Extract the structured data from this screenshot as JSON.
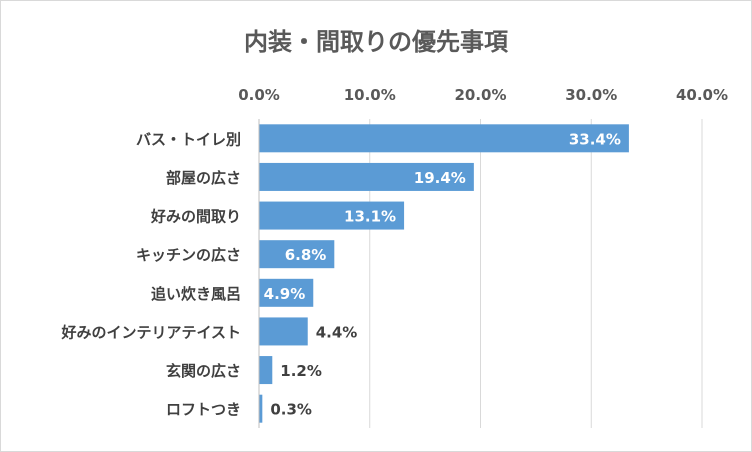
{
  "chart_data": {
    "type": "bar",
    "orientation": "horizontal",
    "title": "内装・間取りの優先事項",
    "xlabel": "",
    "ylabel": "",
    "xlim": [
      0,
      40
    ],
    "x_ticks": [
      "0.0%",
      "10.0%",
      "20.0%",
      "30.0%",
      "40.0%"
    ],
    "x_axis_position": "top",
    "grid": true,
    "categories": [
      "バス・トイレ別",
      "部屋の広さ",
      "好みの間取り",
      "キッチンの広さ",
      "追い炊き風呂",
      "好みのインテリアテイスト",
      "玄関の広さ",
      "ロフトつき"
    ],
    "values": [
      33.4,
      19.4,
      13.1,
      6.8,
      4.9,
      4.4,
      1.2,
      0.3
    ],
    "data_labels": [
      "33.4%",
      "19.4%",
      "13.1%",
      "6.8%",
      "4.9%",
      "4.4%",
      "1.2%",
      "0.3%"
    ],
    "bar_color": "#5b9bd5",
    "gridline_color": "#d9d9d9",
    "label_inside_color": "#ffffff",
    "label_outside_color": "#404040"
  }
}
